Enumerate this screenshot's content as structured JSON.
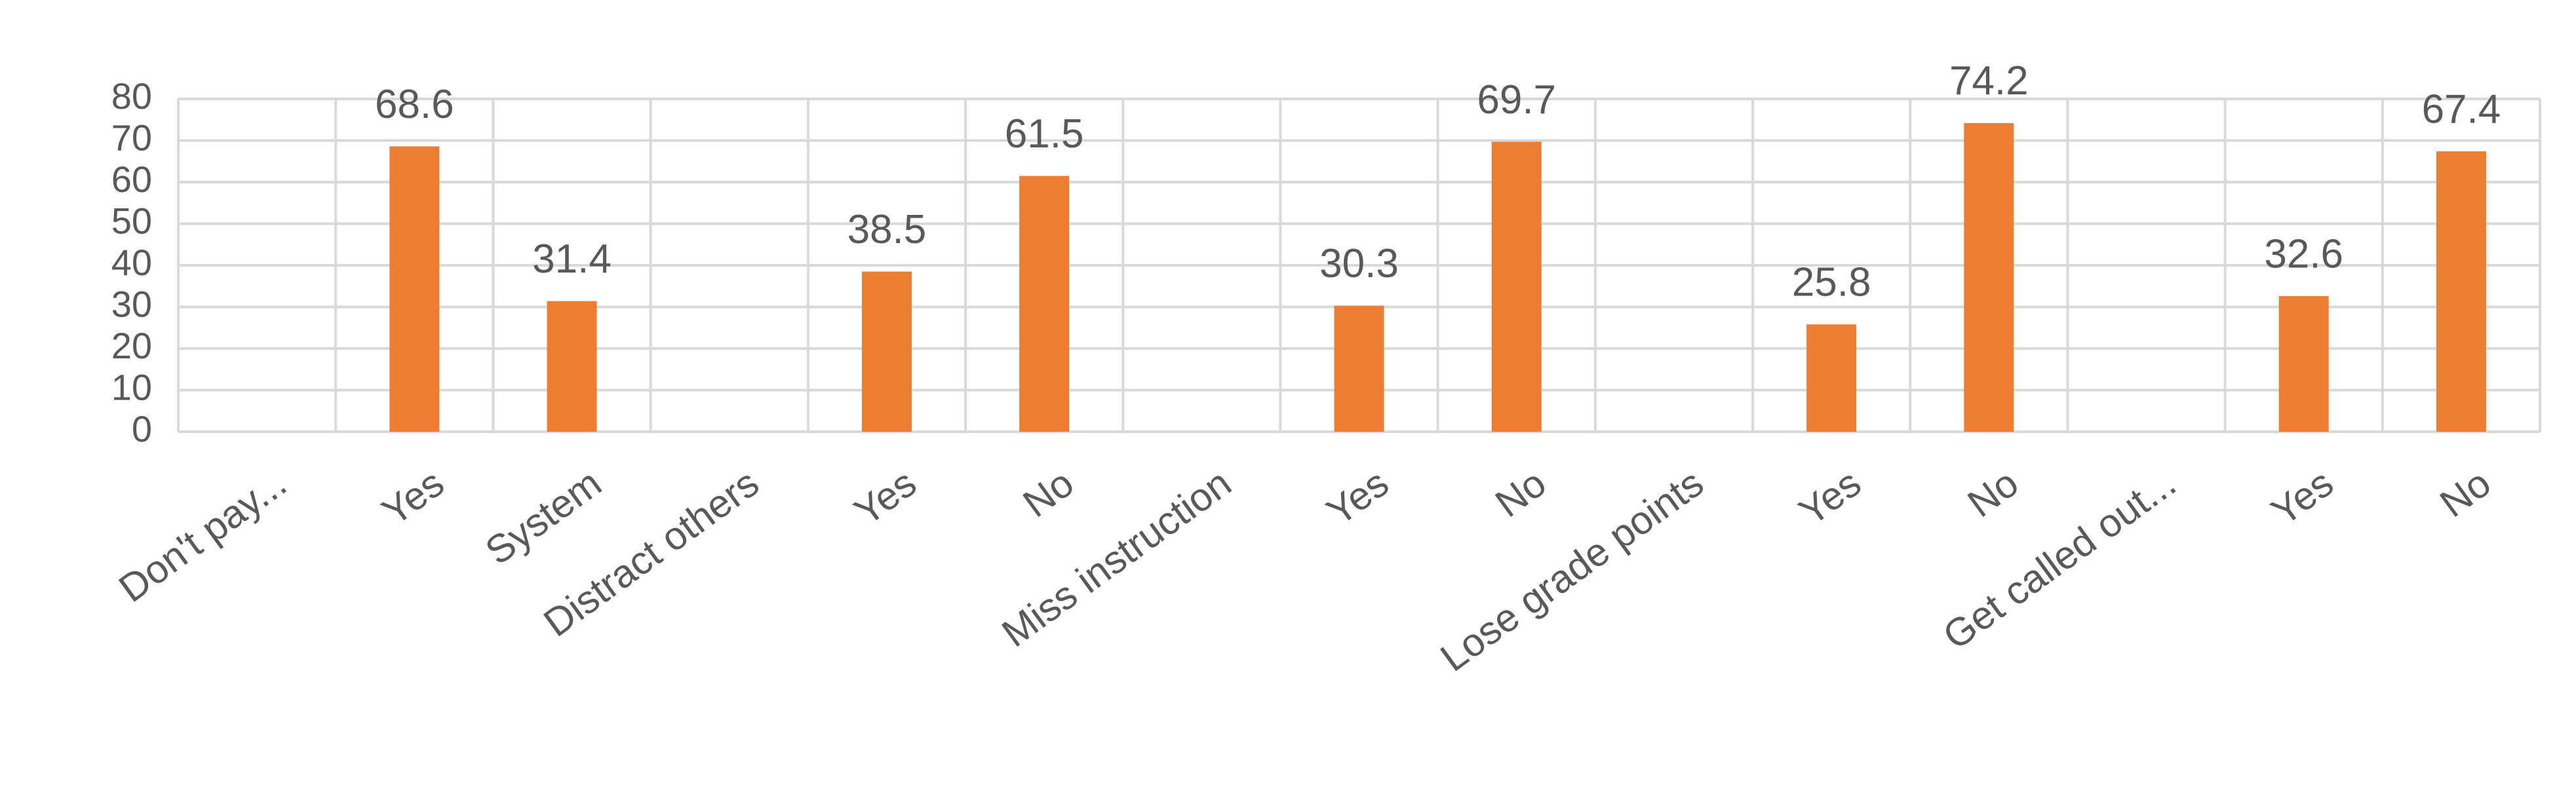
{
  "chart_data": {
    "type": "bar",
    "categories": [
      "Don't pay...",
      "Yes",
      "System",
      "Distract others",
      "Yes",
      "No",
      "Miss instruction",
      "Yes",
      "No",
      "Lose grade points",
      "Yes",
      "No",
      "Get called out...",
      "Yes",
      "No"
    ],
    "values": [
      null,
      68.6,
      31.4,
      null,
      38.5,
      61.5,
      null,
      30.3,
      69.7,
      null,
      25.8,
      74.2,
      null,
      32.6,
      67.4
    ],
    "color": "#ed7d31",
    "ylim": [
      0,
      80
    ],
    "yticks": [
      0,
      10,
      20,
      30,
      40,
      50,
      60,
      70,
      80
    ],
    "grid": true
  }
}
